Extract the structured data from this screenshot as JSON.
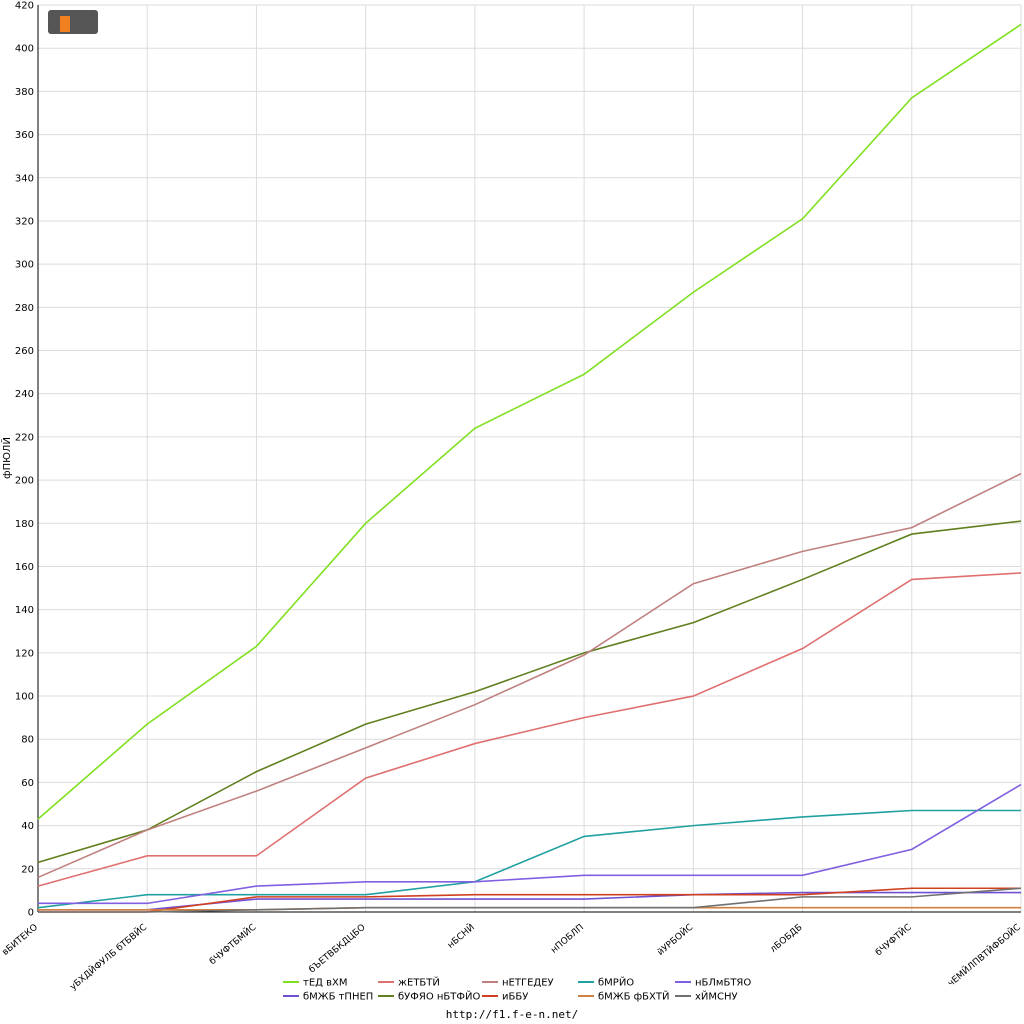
{
  "chart_data": {
    "type": "line",
    "y_label": "фПЮЛЙ",
    "footer": "http://f1.f-e-n.net/",
    "categories": [
      "вБИТЕКО",
      "уБХДЙФУЛБ бТБВЙС",
      "бЧУФТБМЙС",
      "бЪЕТВБКДЦБО",
      "нБСНЙ",
      "нПОБЛП",
      "йУРБОЙС",
      "лБОБДБ",
      "бЧУФТЙС",
      "чЕМЙЛПВТЙФБОЙС"
    ],
    "ylim": [
      0,
      420
    ],
    "yticks": [
      0,
      20,
      40,
      60,
      80,
      100,
      120,
      140,
      160,
      180,
      200,
      220,
      240,
      260,
      280,
      300,
      320,
      340,
      360,
      380,
      400,
      420
    ],
    "grid": true,
    "series": [
      {
        "name": "тЕД вХМ",
        "color": "#80e020",
        "values": [
          43,
          87,
          123,
          180,
          224,
          249,
          287,
          321,
          377,
          411
        ]
      },
      {
        "name": "бМЖБ тПНЕП",
        "color": "#7050d0",
        "values": [
          1,
          1,
          6,
          6,
          6,
          6,
          8,
          9,
          9,
          9
        ]
      },
      {
        "name": "жЕТБТЙ",
        "color": "#e07070",
        "values": [
          12,
          26,
          26,
          62,
          78,
          90,
          100,
          122,
          154,
          157
        ]
      },
      {
        "name": "бУФЯО нБТФЙО",
        "color": "#608020",
        "values": [
          23,
          38,
          65,
          87,
          102,
          120,
          134,
          154,
          175,
          181
        ]
      },
      {
        "name": "нЕТГЕДЕУ",
        "color": "#c08080",
        "values": [
          16,
          38,
          56,
          76,
          96,
          119,
          152,
          167,
          178,
          203
        ]
      },
      {
        "name": "иББУ",
        "color": "#d04020",
        "values": [
          0,
          0,
          7,
          7,
          8,
          8,
          8,
          8,
          11,
          11
        ]
      },
      {
        "name": "бМРЙО",
        "color": "#20a0a0",
        "values": [
          2,
          8,
          8,
          8,
          14,
          35,
          40,
          44,
          47,
          47
        ]
      },
      {
        "name": "бМЖБ фБХТЙ",
        "color": "#d08040",
        "values": [
          1,
          1,
          1,
          2,
          2,
          2,
          2,
          2,
          2,
          2
        ]
      },
      {
        "name": "нБЛмБТЯО",
        "color": "#8060e0",
        "values": [
          4,
          4,
          12,
          14,
          14,
          17,
          17,
          17,
          29,
          59
        ]
      },
      {
        "name": "хЙМСНУ",
        "color": "#707070",
        "values": [
          0,
          0,
          1,
          2,
          2,
          2,
          2,
          7,
          7,
          11
        ]
      }
    ]
  }
}
